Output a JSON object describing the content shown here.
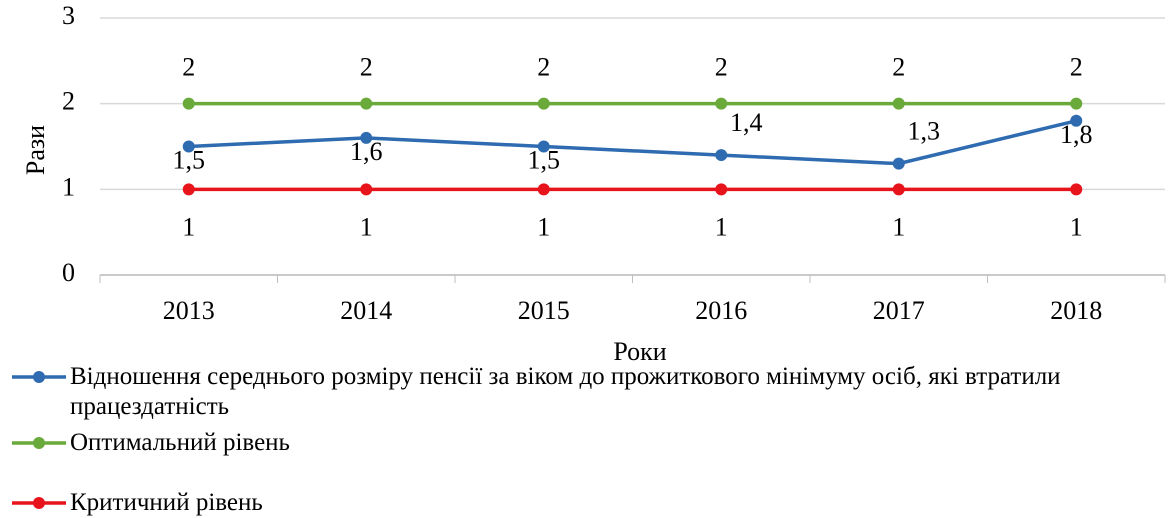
{
  "chart_data": {
    "type": "line",
    "categories": [
      "2013",
      "2014",
      "2015",
      "2016",
      "2017",
      "2018"
    ],
    "series": [
      {
        "name": "Відношення середнього розміру пенсії за віком до прожиткового мінімуму осіб, які втратили працездатність",
        "color": "#2e6bb0",
        "values": [
          1.5,
          1.6,
          1.5,
          1.4,
          1.3,
          1.8
        ],
        "value_labels": [
          "1,5",
          "1,6",
          "1,5",
          "1,4",
          "1,3",
          "1,8"
        ]
      },
      {
        "name": "Оптимальний рівень",
        "color": "#6aaa3a",
        "values": [
          2,
          2,
          2,
          2,
          2,
          2
        ]
      },
      {
        "name": "Критичний рівень",
        "color": "#e8141b",
        "values": [
          1,
          1,
          1,
          1,
          1,
          1
        ]
      }
    ],
    "ylim": [
      0,
      3
    ],
    "yticks": [
      0,
      1,
      2,
      3
    ],
    "grid": true,
    "y_label": "Рази",
    "x_label": "Роки",
    "legend": "bottom"
  }
}
